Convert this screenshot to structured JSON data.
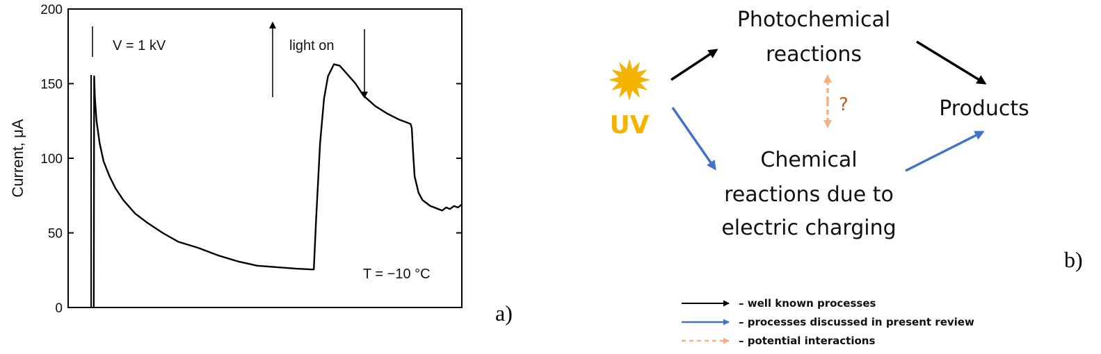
{
  "chart_data": {
    "type": "line",
    "title": "",
    "ylabel": "Current, μA",
    "xlabel": "",
    "ylim": [
      0,
      200
    ],
    "xlim": [
      0,
      100
    ],
    "yticks": [
      "0",
      "50",
      "100",
      "150",
      "200"
    ],
    "grid": false,
    "series": [
      {
        "x": [
          6.5,
          6.6,
          6.8,
          7.2,
          8,
          9,
          10.5,
          12,
          14,
          17,
          20,
          24,
          28,
          33,
          38,
          43,
          48,
          53,
          58,
          62,
          62.4,
          63,
          64,
          65,
          66,
          67.5,
          69,
          71,
          73,
          75,
          78,
          81,
          84,
          86,
          87,
          87.3,
          87.6,
          88,
          89,
          90,
          91,
          92,
          93,
          94,
          95,
          96,
          97,
          98,
          99,
          100
        ],
        "y": [
          0,
          155,
          140,
          125,
          110,
          98,
          88,
          80,
          72,
          63,
          57,
          50,
          44,
          40,
          35,
          31,
          28,
          27,
          26,
          25.5,
          25.5,
          60,
          110,
          140,
          155,
          163,
          162,
          156,
          150,
          142,
          135,
          130,
          126,
          124,
          123,
          120,
          105,
          88,
          77,
          72,
          70,
          68,
          67,
          66,
          65,
          67,
          66,
          68,
          67,
          69
        ]
      }
    ],
    "annotations": {
      "voltage": "V = 1 kV",
      "light": "light on",
      "temperature": "T = −10 °C"
    },
    "panel_label": "a)"
  },
  "diagram": {
    "uv_label": "UV",
    "photochemical_line1": "Photochemical",
    "photochemical_line2": "reactions",
    "chemical_line1": "Chemical",
    "chemical_line2": "reactions due to",
    "chemical_line3": "electric charging",
    "products": "Products",
    "question": "?",
    "panel_label": "b)",
    "colors": {
      "uv": "#F5B301",
      "blue_arrow": "#4472C4",
      "dashed_arrow": "#F4B183",
      "question": "#C55A11",
      "black_arrow": "#000000"
    }
  },
  "legend": [
    {
      "style": "black-arrow",
      "text": "– well known processes"
    },
    {
      "style": "blue-arrow",
      "text": "– processes discussed in present review"
    },
    {
      "style": "dashed-arrow",
      "text": "– potential interactions"
    }
  ]
}
